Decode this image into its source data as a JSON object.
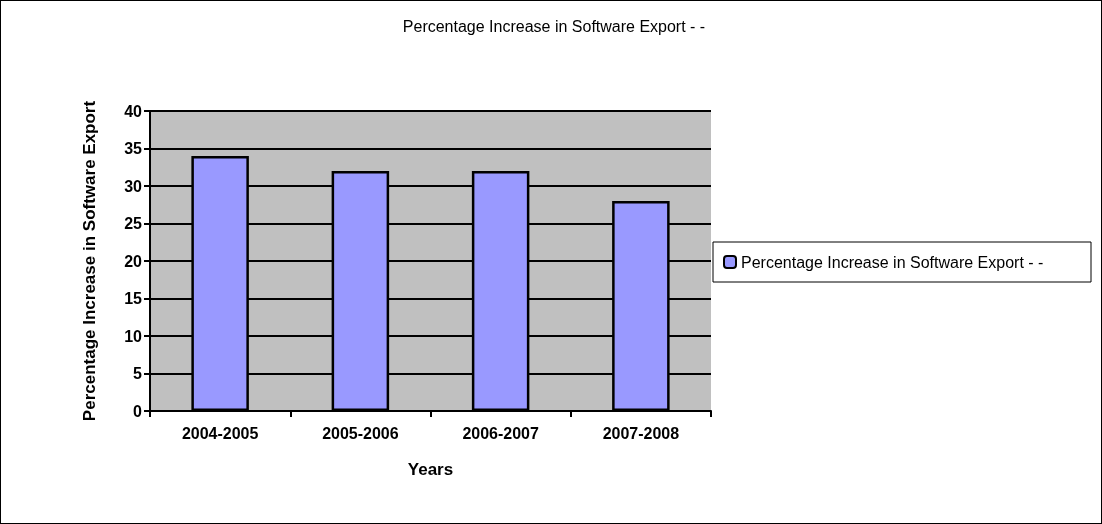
{
  "chart_data": {
    "type": "bar",
    "title": "Percentage Increase in Software Export - -",
    "xlabel": "Years",
    "ylabel": "Percentage Increase in Software Export",
    "categories": [
      "2004-2005",
      "2005-2006",
      "2006-2007",
      "2007-2008"
    ],
    "series": [
      {
        "name": "Percentage Increase in Software Export - -",
        "color": "#9999ff",
        "values": [
          34,
          32,
          32,
          28
        ]
      }
    ],
    "ylim": [
      0,
      40
    ],
    "yticks": [
      0,
      5,
      10,
      15,
      20,
      25,
      30,
      35,
      40
    ],
    "grid": "y",
    "legend": "right"
  }
}
